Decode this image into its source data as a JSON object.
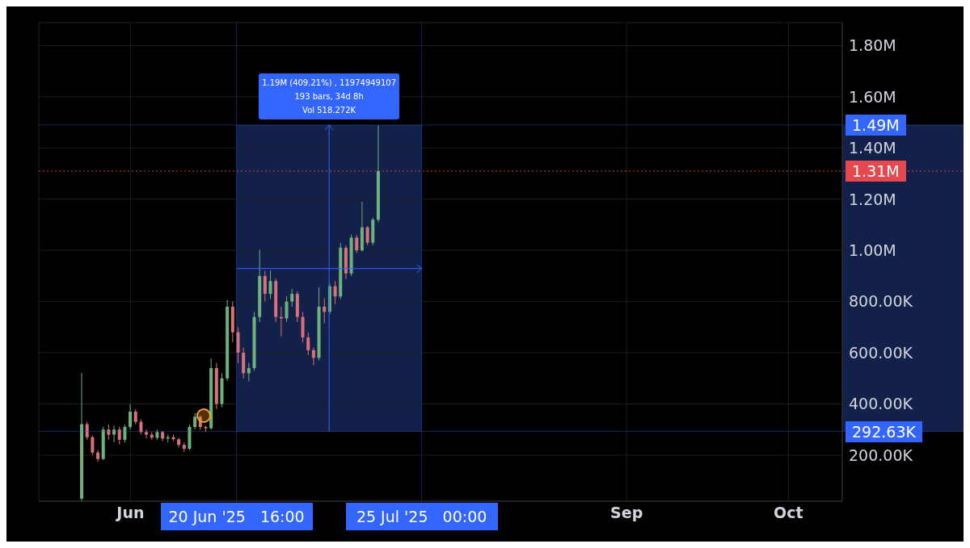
{
  "chart_data": {
    "type": "candlestick",
    "x": [
      "2025-05-23",
      "2025-05-24",
      "2025-05-25",
      "2025-05-26",
      "2025-05-27",
      "2025-05-28",
      "2025-05-29",
      "2025-05-30",
      "2025-05-31",
      "2025-06-01",
      "2025-06-02",
      "2025-06-03",
      "2025-06-04",
      "2025-06-05",
      "2025-06-06",
      "2025-06-07",
      "2025-06-08",
      "2025-06-09",
      "2025-06-10",
      "2025-06-11",
      "2025-06-12",
      "2025-06-13",
      "2025-06-14",
      "2025-06-15",
      "2025-06-16",
      "2025-06-17",
      "2025-06-18",
      "2025-06-19",
      "2025-06-20",
      "2025-06-21",
      "2025-06-22",
      "2025-06-23",
      "2025-06-24",
      "2025-06-25",
      "2025-06-26",
      "2025-06-27",
      "2025-06-28",
      "2025-06-29",
      "2025-06-30",
      "2025-07-01",
      "2025-07-02",
      "2025-07-03",
      "2025-07-04",
      "2025-07-05",
      "2025-07-06",
      "2025-07-07",
      "2025-07-08",
      "2025-07-09",
      "2025-07-10",
      "2025-07-11",
      "2025-07-12",
      "2025-07-13",
      "2025-07-14",
      "2025-07-15",
      "2025-07-16",
      "2025-07-17"
    ],
    "ohlc": [
      [
        30000,
        521000,
        20000,
        321000
      ],
      [
        321000,
        330000,
        260000,
        270000
      ],
      [
        270000,
        275000,
        200000,
        210000
      ],
      [
        210000,
        220000,
        174000,
        185000
      ],
      [
        185000,
        310000,
        180000,
        300000
      ],
      [
        300000,
        320000,
        260000,
        280000
      ],
      [
        280000,
        315000,
        250000,
        300000
      ],
      [
        300000,
        310000,
        242000,
        260000
      ],
      [
        260000,
        320000,
        250000,
        310000
      ],
      [
        310000,
        400000,
        300000,
        370000
      ],
      [
        370000,
        380000,
        320000,
        330000
      ],
      [
        330000,
        340000,
        280000,
        290000
      ],
      [
        290000,
        300000,
        265000,
        280000
      ],
      [
        280000,
        290000,
        260000,
        268000
      ],
      [
        268000,
        300000,
        260000,
        290000
      ],
      [
        290000,
        295000,
        255000,
        265000
      ],
      [
        265000,
        280000,
        250000,
        270000
      ],
      [
        270000,
        280000,
        255000,
        262000
      ],
      [
        262000,
        268000,
        230000,
        240000
      ],
      [
        240000,
        250000,
        213000,
        225000
      ],
      [
        225000,
        320000,
        220000,
        310000
      ],
      [
        310000,
        364000,
        300000,
        350000
      ],
      [
        350000,
        355000,
        300000,
        310000
      ],
      [
        310000,
        315000,
        290000,
        305000
      ],
      [
        305000,
        577000,
        300000,
        540000
      ],
      [
        540000,
        560000,
        380000,
        400000
      ],
      [
        400000,
        520000,
        387000,
        500000
      ],
      [
        500000,
        806000,
        490000,
        780000
      ],
      [
        780000,
        800000,
        640000,
        680000
      ],
      [
        680000,
        700000,
        560000,
        600000
      ],
      [
        600000,
        620000,
        500000,
        520000
      ],
      [
        520000,
        560000,
        488000,
        540000
      ],
      [
        540000,
        760000,
        530000,
        740000
      ],
      [
        740000,
        1003000,
        720000,
        900000
      ],
      [
        900000,
        920000,
        800000,
        830000
      ],
      [
        830000,
        921000,
        810000,
        880000
      ],
      [
        880000,
        890000,
        720000,
        740000
      ],
      [
        740000,
        780000,
        665000,
        734000
      ],
      [
        734000,
        820000,
        720000,
        800000
      ],
      [
        800000,
        849000,
        780000,
        830000
      ],
      [
        830000,
        840000,
        720000,
        740000
      ],
      [
        740000,
        760000,
        640000,
        660000
      ],
      [
        660000,
        680000,
        590000,
        610000
      ],
      [
        610000,
        620000,
        551000,
        580000
      ],
      [
        580000,
        856000,
        570000,
        780000
      ],
      [
        780000,
        813000,
        715000,
        760000
      ],
      [
        760000,
        872000,
        750000,
        860000
      ],
      [
        860000,
        880000,
        790000,
        820000
      ],
      [
        820000,
        1029000,
        810000,
        1010000
      ],
      [
        1010000,
        1020000,
        888000,
        910000
      ],
      [
        910000,
        1062000,
        900000,
        1050000
      ],
      [
        1050000,
        1060000,
        990000,
        1000000
      ],
      [
        1000000,
        1190000,
        995000,
        1090000
      ],
      [
        1090000,
        1095000,
        1020000,
        1030000
      ],
      [
        1030000,
        1128000,
        1020000,
        1120000
      ],
      [
        1120000,
        1488000,
        1110000,
        1310000
      ]
    ],
    "colors": [
      "#6bb37a",
      "#d9707a",
      "#d9707a",
      "#d9707a",
      "#6bb37a",
      "#d9707a",
      "#6bb37a",
      "#d9707a",
      "#6bb37a",
      "#6bb37a",
      "#d9707a",
      "#d9707a",
      "#d9707a",
      "#d9707a",
      "#6bb37a",
      "#d9707a",
      "#6bb37a",
      "#d9707a",
      "#d9707a",
      "#d9707a",
      "#6bb37a",
      "#6bb37a",
      "#d9707a",
      "#d9707a",
      "#6bb37a",
      "#d9707a",
      "#6bb37a",
      "#6bb37a",
      "#d9707a",
      "#d9707a",
      "#d9707a",
      "#6bb37a",
      "#6bb37a",
      "#6bb37a",
      "#d9707a",
      "#6bb37a",
      "#d9707a",
      "#d9707a",
      "#6bb37a",
      "#6bb37a",
      "#d9707a",
      "#d9707a",
      "#d9707a",
      "#d9707a",
      "#6bb37a",
      "#d9707a",
      "#6bb37a",
      "#d9707a",
      "#6bb37a",
      "#d9707a",
      "#6bb37a",
      "#d9707a",
      "#6bb37a",
      "#d9707a",
      "#6bb37a",
      "#6bb37a"
    ],
    "xlim": [
      "2025-05-15",
      "2025-10-11"
    ],
    "xticks": [
      {
        "value": "2025-06-01",
        "label": "Jun"
      },
      {
        "value": "2025-09-01",
        "label": "Sep"
      },
      {
        "value": "2025-10-01",
        "label": "Oct"
      }
    ],
    "ylim": [
      20000,
      1890000
    ],
    "yticks": [
      {
        "value": 200000,
        "label": "200.00K"
      },
      {
        "value": 400000,
        "label": "400.00K"
      },
      {
        "value": 600000,
        "label": "600.00K"
      },
      {
        "value": 800000,
        "label": "800.00K"
      },
      {
        "value": 1000000,
        "label": "1.00M"
      },
      {
        "value": 1200000,
        "label": "1.20M"
      },
      {
        "value": 1400000,
        "label": "1.40M"
      },
      {
        "value": 1600000,
        "label": "1.60M"
      },
      {
        "value": 1800000,
        "label": "1.80M"
      }
    ],
    "grid": true,
    "ref_lines": [
      {
        "axis": "y",
        "value": 1310000,
        "label": "1.31M",
        "color": "#e5484d",
        "line_style": "dotted"
      },
      {
        "axis": "y",
        "value": 1490000,
        "label": "1.49M",
        "color": "#3366ff",
        "line_style": "solid"
      },
      {
        "axis": "y",
        "value": 292630,
        "label": "292.63K",
        "color": "#3366ff",
        "line_style": "solid"
      },
      {
        "axis": "x",
        "value": "2025-06-20T16:00",
        "label": "20 Jun '25   16:00",
        "color": "#3366ff",
        "line_style": "solid"
      },
      {
        "axis": "x",
        "value": "2025-07-25T00:00",
        "label": "25 Jul '25   00:00",
        "color": "#3366ff",
        "line_style": "solid"
      }
    ],
    "annotations": [
      "1.19M (409.21%) , 11974949107",
      "193 bars, 34d 8h",
      {
        "text": "Vol 518.272K",
        "x": "2025-07-07T20:00",
        "y": 1490000
      }
    ]
  }
}
